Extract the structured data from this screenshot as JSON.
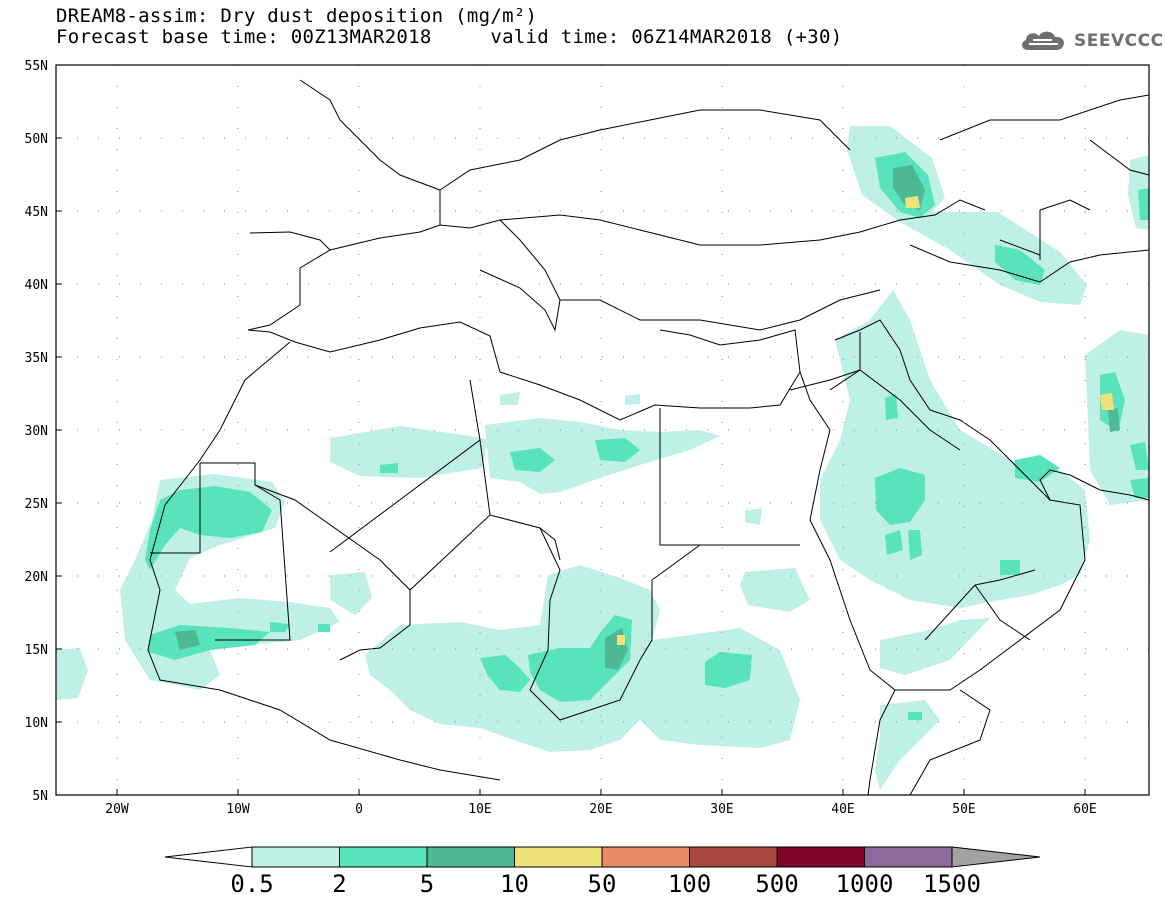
{
  "title": {
    "line1": "DREAM8-assim: Dry dust deposition (mg/m²)",
    "line2": "Forecast base time: 00Z13MAR2018     valid time: 06Z14MAR2018 (+30)"
  },
  "logo": {
    "icon": "cloud-icon",
    "text": "SEEVCCC"
  },
  "map": {
    "lon_range": [
      -25,
      65
    ],
    "lat_range": [
      5,
      55
    ],
    "lat_ticks": [
      "5N",
      "10N",
      "15N",
      "20N",
      "25N",
      "30N",
      "35N",
      "40N",
      "45N",
      "50N",
      "55N"
    ],
    "lon_ticks": [
      "20W",
      "10W",
      "0",
      "10E",
      "20E",
      "30E",
      "40E",
      "50E",
      "60E"
    ],
    "grid": "dotted"
  },
  "colorbar": {
    "labels": [
      "0.5",
      "2",
      "5",
      "10",
      "50",
      "100",
      "500",
      "1000",
      "1500"
    ],
    "colors": [
      "#bff0e6",
      "#58e3bd",
      "#4fb995",
      "#f0e27a",
      "#e98a68",
      "#a9493e",
      "#7e0528",
      "#8c6a9b"
    ],
    "under_color": "#ffffff",
    "over_color": "#a3a3a3"
  }
}
